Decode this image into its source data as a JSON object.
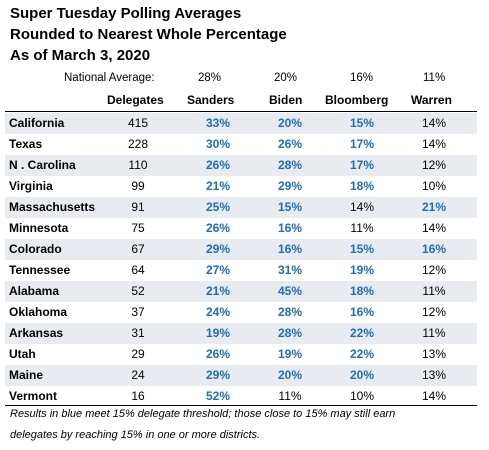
{
  "title": {
    "line1": "Super Tuesday Polling Averages",
    "line2": "Rounded to Nearest Whole Percentage",
    "line3": "As of March 3, 2020"
  },
  "national_average": {
    "label": "National Average:",
    "sanders": "28%",
    "biden": "20%",
    "bloomberg": "16%",
    "warren": "11%"
  },
  "columns": {
    "delegates": "Delegates",
    "sanders": "Sanders",
    "biden": "Biden",
    "bloomberg": "Bloomberg",
    "warren": "Warren"
  },
  "colors": {
    "threshold_blue": "#1f6db5",
    "row_shade": "#e8ecf1"
  },
  "rows": [
    {
      "state": "California",
      "delegates": "415",
      "sanders": "33%",
      "biden": "20%",
      "bloomberg": "15%",
      "warren": "14%"
    },
    {
      "state": "Texas",
      "delegates": "228",
      "sanders": "30%",
      "biden": "26%",
      "bloomberg": "17%",
      "warren": "14%"
    },
    {
      "state": "N . Carolina",
      "delegates": "110",
      "sanders": "26%",
      "biden": "28%",
      "bloomberg": "17%",
      "warren": "12%"
    },
    {
      "state": "Virginia",
      "delegates": "99",
      "sanders": "21%",
      "biden": "29%",
      "bloomberg": "18%",
      "warren": "10%"
    },
    {
      "state": "Massachusetts",
      "delegates": "91",
      "sanders": "25%",
      "biden": "15%",
      "bloomberg": "14%",
      "warren": "21%"
    },
    {
      "state": "Minnesota",
      "delegates": "75",
      "sanders": "26%",
      "biden": "16%",
      "bloomberg": "11%",
      "warren": "14%"
    },
    {
      "state": "Colorado",
      "delegates": "67",
      "sanders": "29%",
      "biden": "16%",
      "bloomberg": "15%",
      "warren": "16%"
    },
    {
      "state": "Tennessee",
      "delegates": "64",
      "sanders": "27%",
      "biden": "31%",
      "bloomberg": "19%",
      "warren": "12%"
    },
    {
      "state": "Alabama",
      "delegates": "52",
      "sanders": "21%",
      "biden": "45%",
      "bloomberg": "18%",
      "warren": "11%"
    },
    {
      "state": "Oklahoma",
      "delegates": "37",
      "sanders": "24%",
      "biden": "28%",
      "bloomberg": "16%",
      "warren": "12%"
    },
    {
      "state": "Arkansas",
      "delegates": "31",
      "sanders": "19%",
      "biden": "28%",
      "bloomberg": "22%",
      "warren": "11%"
    },
    {
      "state": "Utah",
      "delegates": "29",
      "sanders": "26%",
      "biden": "19%",
      "bloomberg": "22%",
      "warren": "13%"
    },
    {
      "state": "Maine",
      "delegates": "24",
      "sanders": "29%",
      "biden": "20%",
      "bloomberg": "20%",
      "warren": "13%"
    },
    {
      "state": "Vermont",
      "delegates": "16",
      "sanders": "52%",
      "biden": "11%",
      "bloomberg": "10%",
      "warren": "14%"
    }
  ],
  "footnote": {
    "line1": "Results in blue meet 15% delegate threshold; those close to 15% may still earn",
    "line2": "delegates by reaching 15% in one or more districts."
  }
}
